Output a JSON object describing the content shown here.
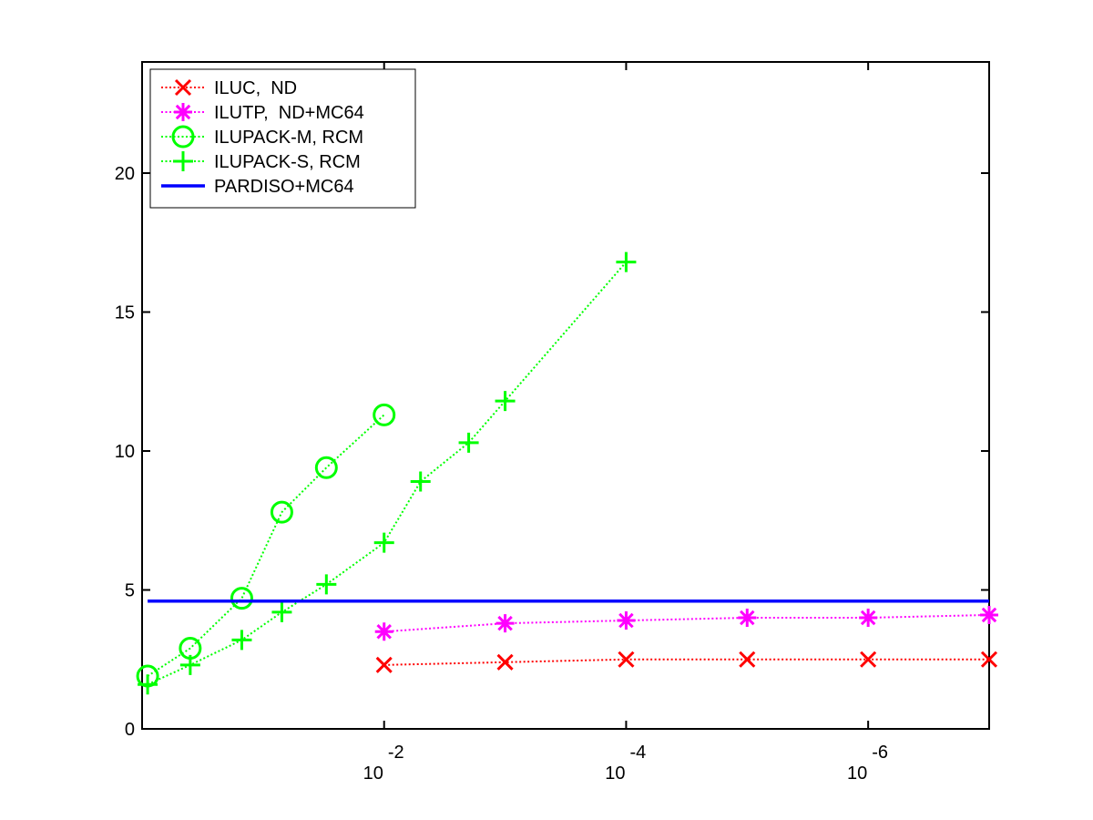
{
  "chart_data": {
    "type": "line",
    "title": "",
    "xlabel": "",
    "ylabel": "",
    "x_scale": "log",
    "x_reversed": true,
    "xlim": [
      1.0,
      1e-07
    ],
    "ylim": [
      0,
      24
    ],
    "yticks": [
      0,
      5,
      10,
      15,
      20
    ],
    "ytick_labels": [
      "0",
      "5",
      "10",
      "15",
      "20"
    ],
    "xticks": [
      0.01,
      0.0001,
      1e-06
    ],
    "xtick_bases": [
      "10",
      "10",
      "10"
    ],
    "xtick_exponents": [
      "-2",
      "-4",
      "-6"
    ],
    "grid": false,
    "legend_position": "top-left",
    "colors": {
      "iluc": "#ff0000",
      "ilutp": "#ff00ff",
      "ilupack": "#00ff00",
      "pardiso": "#0000ff",
      "axes": "#000000"
    },
    "series": [
      {
        "name": "ILUC,  ND",
        "marker": "x",
        "line": "dotted",
        "color": "#ff0000",
        "x": [
          0.01,
          0.001,
          0.0001,
          1e-05,
          1e-06,
          1e-07
        ],
        "y": [
          2.3,
          2.4,
          2.5,
          2.5,
          2.5,
          2.5
        ]
      },
      {
        "name": "ILUTP,  ND+MC64",
        "marker": "star",
        "line": "dotted",
        "color": "#ff00ff",
        "x": [
          0.01,
          0.001,
          0.0001,
          1e-05,
          1e-06,
          1e-07
        ],
        "y": [
          3.5,
          3.8,
          3.9,
          4.0,
          4.0,
          4.1
        ]
      },
      {
        "name": "ILUPACK-M, RCM",
        "marker": "circle",
        "line": "dotted",
        "color": "#00ff00",
        "x": [
          0.9,
          0.4,
          0.15,
          0.07,
          0.03,
          0.01
        ],
        "y": [
          1.9,
          2.9,
          4.7,
          7.8,
          9.4,
          11.3
        ]
      },
      {
        "name": "ILUPACK-S, RCM",
        "marker": "plus",
        "line": "dotted",
        "color": "#00ff00",
        "x": [
          0.9,
          0.4,
          0.15,
          0.07,
          0.03,
          0.01,
          0.005,
          0.002,
          0.001,
          0.0001
        ],
        "y": [
          1.6,
          2.3,
          3.2,
          4.2,
          5.2,
          6.7,
          8.9,
          10.3,
          11.8,
          16.8
        ]
      },
      {
        "name": "PARDISO+MC64",
        "marker": "none",
        "line": "solid",
        "color": "#0000ff",
        "x": [
          0.9,
          1e-07
        ],
        "y": [
          4.6,
          4.6
        ]
      }
    ]
  }
}
